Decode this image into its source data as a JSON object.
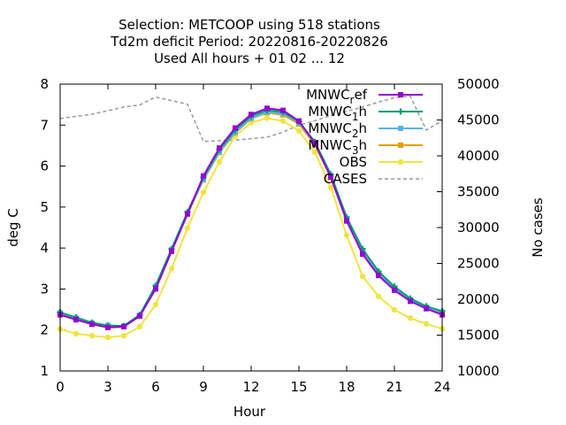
{
  "chart_data": {
    "type": "line",
    "title_lines": [
      "Selection: METCOOP using   518 stations",
      "Td2m deficit   Period: 20220816-20220826",
      "Used  All hours  + 01 02 ... 12"
    ],
    "xlabel": "Hour",
    "ylabel": "deg C",
    "y2label": "No cases",
    "xlim": [
      0,
      24
    ],
    "ylim": [
      1,
      8
    ],
    "y2lim": [
      10000,
      50000
    ],
    "xticks": [
      "0",
      "3",
      "6",
      "9",
      "12",
      "15",
      "18",
      "21",
      "24"
    ],
    "yticks": [
      "1",
      "2",
      "3",
      "4",
      "5",
      "6",
      "7",
      "8"
    ],
    "y2ticks": [
      "10000",
      "15000",
      "20000",
      "25000",
      "30000",
      "35000",
      "40000",
      "45000",
      "50000"
    ],
    "grid": false,
    "legend_position": "top-right",
    "x": [
      0,
      1,
      2,
      3,
      4,
      5,
      6,
      7,
      8,
      9,
      10,
      11,
      12,
      13,
      14,
      15,
      16,
      17,
      18,
      19,
      20,
      21,
      22,
      23,
      24
    ],
    "series": [
      {
        "name": "MNWC_ref",
        "legend_main": "MNWC",
        "legend_sub": "r",
        "legend_tail": "ef",
        "color": "#9400d3",
        "marker": "square",
        "values": [
          2.37,
          2.25,
          2.14,
          2.06,
          2.08,
          2.34,
          3.0,
          3.92,
          4.83,
          5.76,
          6.44,
          6.93,
          7.26,
          7.41,
          7.36,
          7.1,
          6.56,
          5.73,
          4.66,
          3.85,
          3.33,
          2.97,
          2.7,
          2.52,
          2.37
        ]
      },
      {
        "name": "MNWC_1h",
        "legend_main": "MNWC",
        "legend_sub": "1",
        "legend_tail": "h",
        "color": "#009e73",
        "marker": "plus",
        "values": [
          2.43,
          2.31,
          2.18,
          2.11,
          2.1,
          2.37,
          3.08,
          3.98,
          4.88,
          5.72,
          6.4,
          6.88,
          7.22,
          7.36,
          7.32,
          7.09,
          6.59,
          5.8,
          4.75,
          3.98,
          3.43,
          3.06,
          2.77,
          2.58,
          2.46
        ]
      },
      {
        "name": "MNWC_2h",
        "legend_main": "MNWC",
        "legend_sub": "2",
        "legend_tail": "h",
        "color": "#56b4e9",
        "marker": "square",
        "values": [
          2.42,
          2.29,
          2.17,
          2.11,
          2.1,
          2.36,
          3.06,
          3.96,
          4.85,
          5.68,
          6.35,
          6.83,
          7.17,
          7.32,
          7.28,
          7.06,
          6.56,
          5.77,
          4.72,
          3.94,
          3.39,
          3.02,
          2.74,
          2.56,
          2.43
        ]
      },
      {
        "name": "MNWC_3h",
        "legend_main": "MNWC",
        "legend_sub": "3",
        "legend_tail": "h",
        "color": "#e69f00",
        "marker": "square",
        "values": [
          2.4,
          2.27,
          2.15,
          2.09,
          2.09,
          2.35,
          3.04,
          3.95,
          4.83,
          5.66,
          6.33,
          6.81,
          7.16,
          7.3,
          7.25,
          7.03,
          6.52,
          5.73,
          4.68,
          3.9,
          3.36,
          2.99,
          2.71,
          2.53,
          2.4
        ]
      },
      {
        "name": "OBS",
        "legend_main": "OBS",
        "legend_sub": "",
        "legend_tail": "",
        "color": "#f0e442",
        "marker": "circle",
        "values": [
          2.02,
          1.91,
          1.86,
          1.82,
          1.86,
          2.08,
          2.62,
          3.5,
          4.49,
          5.36,
          6.1,
          6.73,
          7.06,
          7.17,
          7.1,
          6.86,
          6.34,
          5.48,
          4.31,
          3.31,
          2.82,
          2.49,
          2.29,
          2.15,
          2.03
        ]
      }
    ],
    "cases": {
      "name": "CASES",
      "axis": "y2",
      "color": "#999999",
      "dash": true,
      "x": [
        0,
        1,
        2,
        3,
        4,
        5,
        6,
        7,
        8,
        9,
        10,
        11,
        12,
        13,
        14,
        15,
        16,
        17,
        18,
        19,
        20,
        21,
        22,
        23,
        24
      ],
      "values": [
        45200,
        45500,
        45800,
        46300,
        46800,
        47100,
        48200,
        47700,
        47200,
        42000,
        42100,
        42200,
        42400,
        42600,
        43300,
        44300,
        44900,
        45600,
        46200,
        46800,
        47500,
        48100,
        48300,
        43600,
        44900
      ]
    }
  }
}
